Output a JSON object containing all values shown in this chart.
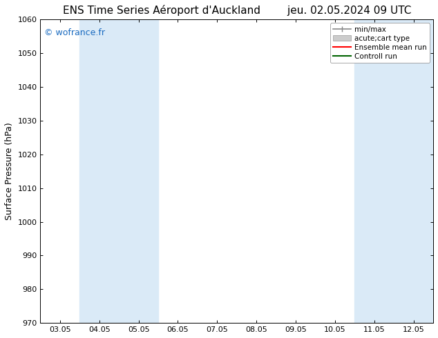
{
  "title_left": "ENS Time Series Aéroport d'Auckland",
  "title_right": "jeu. 02.05.2024 09 UTC",
  "ylabel": "Surface Pressure (hPa)",
  "ylim": [
    970,
    1060
  ],
  "yticks": [
    970,
    980,
    990,
    1000,
    1010,
    1020,
    1030,
    1040,
    1050,
    1060
  ],
  "xtick_labels": [
    "03.05",
    "04.05",
    "05.05",
    "06.05",
    "07.05",
    "08.05",
    "09.05",
    "10.05",
    "11.05",
    "12.05"
  ],
  "xtick_positions": [
    0,
    1,
    2,
    3,
    4,
    5,
    6,
    7,
    8,
    9
  ],
  "xlim": [
    -0.5,
    9.5
  ],
  "shaded_bands": [
    {
      "x_start": 0.5,
      "x_end": 1.5
    },
    {
      "x_start": 1.5,
      "x_end": 2.5
    },
    {
      "x_start": 7.5,
      "x_end": 8.5
    },
    {
      "x_start": 8.5,
      "x_end": 9.5
    }
  ],
  "shade_color": "#daeaf7",
  "watermark": "© wofrance.fr",
  "watermark_color": "#1a6bc0",
  "legend_entries": [
    {
      "label": "min/max"
    },
    {
      "label": "acute;cart type"
    },
    {
      "label": "Ensemble mean run"
    },
    {
      "label": "Controll run"
    }
  ],
  "bg_color": "#ffffff",
  "tick_label_size": 8,
  "title_size": 11,
  "ylabel_size": 9
}
